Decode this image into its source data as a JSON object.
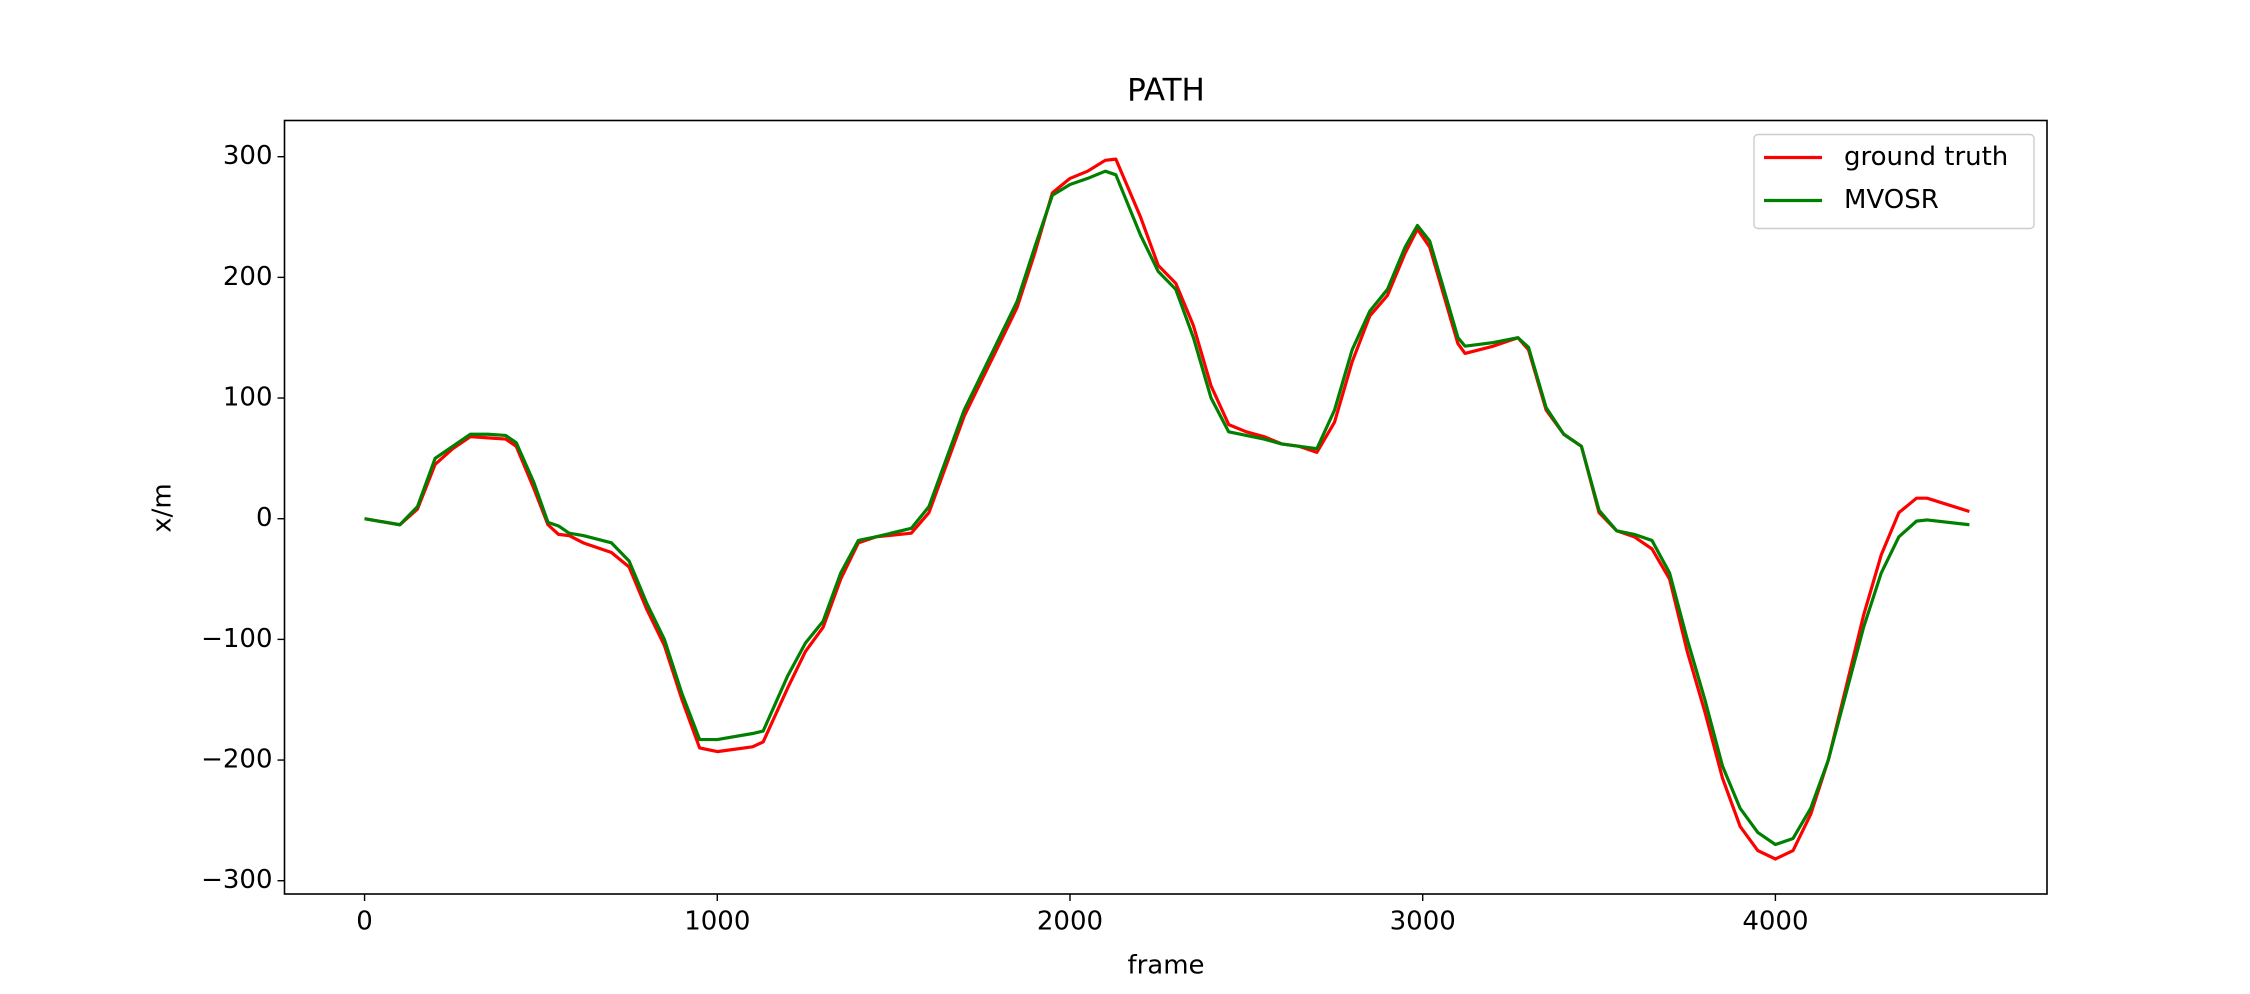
{
  "chart_data": {
    "type": "line",
    "title": "PATH",
    "x_label": "frame",
    "y_label": "x/m",
    "x": [
      0,
      100,
      150,
      200,
      250,
      300,
      350,
      400,
      430,
      480,
      520,
      550,
      580,
      620,
      700,
      750,
      800,
      850,
      900,
      950,
      1000,
      1100,
      1130,
      1200,
      1250,
      1300,
      1350,
      1400,
      1450,
      1550,
      1600,
      1700,
      1800,
      1850,
      1900,
      1950,
      2000,
      2050,
      2100,
      2130,
      2200,
      2250,
      2300,
      2350,
      2400,
      2450,
      2500,
      2550,
      2600,
      2650,
      2700,
      2750,
      2800,
      2850,
      2900,
      2950,
      2985,
      3020,
      3100,
      3120,
      3200,
      3270,
      3300,
      3350,
      3400,
      3450,
      3500,
      3550,
      3600,
      3650,
      3700,
      3750,
      3800,
      3850,
      3900,
      3950,
      4000,
      4050,
      4100,
      4150,
      4200,
      4250,
      4300,
      4350,
      4400,
      4430,
      4550
    ],
    "series": [
      {
        "name": "ground truth",
        "color": "#ff0000",
        "values": [
          0,
          -5,
          8,
          45,
          58,
          68,
          67,
          66,
          60,
          25,
          -5,
          -13,
          -14,
          -20,
          -28,
          -40,
          -75,
          -105,
          -150,
          -190,
          -193,
          -189,
          -185,
          -140,
          -110,
          -90,
          -50,
          -20,
          -15,
          -12,
          5,
          85,
          145,
          175,
          220,
          270,
          282,
          288,
          297,
          298,
          250,
          210,
          195,
          160,
          110,
          78,
          72,
          68,
          62,
          60,
          55,
          80,
          130,
          168,
          185,
          220,
          240,
          225,
          145,
          137,
          143,
          150,
          140,
          90,
          70,
          60,
          5,
          -10,
          -15,
          -25,
          -50,
          -110,
          -160,
          -215,
          -255,
          -275,
          -282,
          -275,
          -245,
          -200,
          -140,
          -80,
          -30,
          5,
          17,
          17,
          6
        ]
      },
      {
        "name": "MVOSR",
        "color": "#008000",
        "values": [
          0,
          -5,
          10,
          50,
          60,
          70,
          70,
          69,
          63,
          30,
          -3,
          -6,
          -12,
          -14,
          -20,
          -35,
          -70,
          -100,
          -145,
          -183,
          -183,
          -178,
          -176,
          -130,
          -103,
          -85,
          -45,
          -18,
          -15,
          -8,
          10,
          90,
          150,
          180,
          225,
          268,
          277,
          282,
          288,
          285,
          235,
          205,
          190,
          150,
          100,
          72,
          69,
          66,
          62,
          60,
          58,
          90,
          140,
          172,
          190,
          225,
          243,
          230,
          150,
          143,
          146,
          150,
          142,
          92,
          70,
          60,
          7,
          -10,
          -13,
          -18,
          -45,
          -100,
          -150,
          -205,
          -240,
          -260,
          -270,
          -265,
          -240,
          -200,
          -145,
          -90,
          -45,
          -15,
          -2,
          -1,
          -5
        ]
      }
    ],
    "xlim": [
      -227,
      4770
    ],
    "ylim": [
      -311,
      330
    ],
    "xticks": [
      0,
      1000,
      2000,
      3000,
      4000
    ],
    "yticks": [
      {
        "value": -300,
        "label": "−300"
      },
      {
        "value": -200,
        "label": "−200"
      },
      {
        "value": -100,
        "label": "−100"
      },
      0,
      100,
      200,
      300
    ],
    "legend": "upper right"
  }
}
